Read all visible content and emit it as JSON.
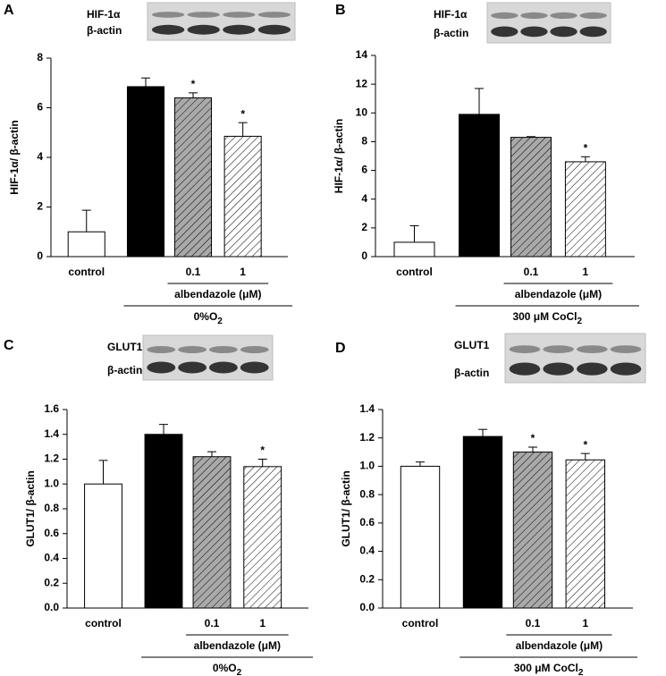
{
  "chart_data": [
    {
      "type": "bar",
      "panel": "A",
      "blot_labels": [
        "HIF-1α",
        "β-actin"
      ],
      "ylabel": "HIF-1α/ β-actin",
      "ylim": [
        0,
        8
      ],
      "yticks": [
        0,
        2,
        4,
        6,
        8
      ],
      "categories": [
        "control",
        null,
        "0.1",
        "1"
      ],
      "values": [
        1.0,
        6.85,
        6.4,
        4.85
      ],
      "errors": [
        0.87,
        0.35,
        0.2,
        0.55
      ],
      "colors": [
        "#ffffff",
        "#000000",
        "#a9a9a9",
        "#ffffff"
      ],
      "hatch": [
        false,
        false,
        true,
        true
      ],
      "annotations": [
        null,
        null,
        "*",
        "*"
      ],
      "group_label": "albendazole (μM)",
      "condition": [
        "0%O",
        "2"
      ]
    },
    {
      "type": "bar",
      "panel": "B",
      "blot_labels": [
        "HIF-1α",
        "β-actin"
      ],
      "ylabel": "HIF-1α/ β-actin",
      "ylim": [
        0,
        14
      ],
      "yticks": [
        0,
        2,
        4,
        6,
        8,
        10,
        12,
        14
      ],
      "categories": [
        "control",
        null,
        "0.1",
        "1"
      ],
      "values": [
        1.0,
        9.9,
        8.3,
        6.6
      ],
      "errors": [
        1.15,
        1.8,
        0.05,
        0.35
      ],
      "colors": [
        "#ffffff",
        "#000000",
        "#a9a9a9",
        "#ffffff"
      ],
      "hatch": [
        false,
        false,
        true,
        true
      ],
      "annotations": [
        null,
        null,
        null,
        "*"
      ],
      "group_label": "albendazole (μM)",
      "condition": [
        "300 μM CoCl",
        "2"
      ]
    },
    {
      "type": "bar",
      "panel": "C",
      "blot_labels": [
        "GLUT1",
        "β-actin"
      ],
      "ylabel": "GLUT1/ β-actin",
      "ylim": [
        0,
        1.6
      ],
      "yticks": [
        {
          "value": 0,
          "label": "0.0"
        },
        0.2,
        0.4,
        0.6,
        0.8,
        {
          "value": 1,
          "label": "1.0"
        },
        1.2,
        1.4,
        1.6
      ],
      "categories": [
        "control",
        null,
        "0.1",
        "1"
      ],
      "values": [
        1.0,
        1.4,
        1.22,
        1.14
      ],
      "errors": [
        0.19,
        0.08,
        0.04,
        0.06
      ],
      "colors": [
        "#ffffff",
        "#000000",
        "#a9a9a9",
        "#ffffff"
      ],
      "hatch": [
        false,
        false,
        true,
        true
      ],
      "annotations": [
        null,
        null,
        null,
        "*"
      ],
      "group_label": "albendazole (μM)",
      "condition": [
        "0%O",
        "2"
      ]
    },
    {
      "type": "bar",
      "panel": "D",
      "blot_labels": [
        "GLUT1",
        "β-actin"
      ],
      "ylabel": "GLUT1/ β-actin",
      "ylim": [
        0,
        1.4
      ],
      "yticks": [
        {
          "value": 0,
          "label": "0.0"
        },
        0.2,
        0.4,
        0.6,
        0.8,
        {
          "value": 1,
          "label": "1.0"
        },
        1.2,
        1.4
      ],
      "categories": [
        "control",
        null,
        "0.1",
        "1"
      ],
      "values": [
        1.0,
        1.21,
        1.1,
        1.045
      ],
      "errors": [
        0.03,
        0.05,
        0.035,
        0.045
      ],
      "colors": [
        "#ffffff",
        "#000000",
        "#a9a9a9",
        "#ffffff"
      ],
      "hatch": [
        false,
        false,
        true,
        true
      ],
      "annotations": [
        null,
        null,
        "*",
        "*"
      ],
      "group_label": "albendazole (μM)",
      "condition": [
        "300 μM CoCl",
        "2"
      ]
    }
  ]
}
